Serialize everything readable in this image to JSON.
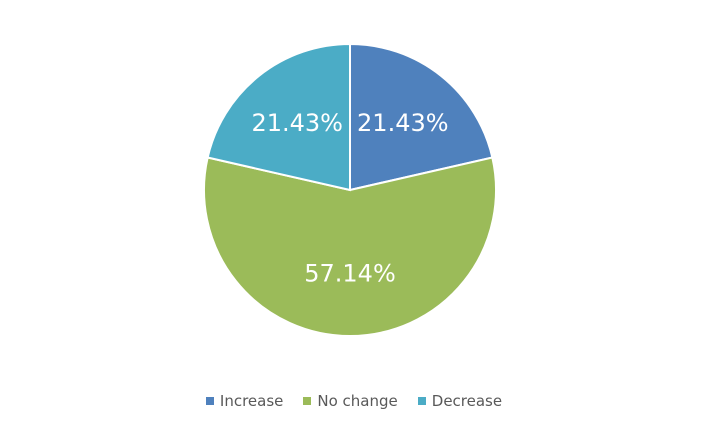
{
  "chart_data": {
    "type": "pie",
    "title": "",
    "categories": [
      "Increase",
      "No change",
      "Decrease"
    ],
    "values": [
      21.43,
      57.14,
      21.43
    ],
    "data_labels": [
      "21.43%",
      "57.14%",
      "21.43%"
    ],
    "colors": [
      "#4f81bd",
      "#9bbb59",
      "#4bacc6"
    ],
    "legend_position": "bottom",
    "start_angle": "top, clockwise"
  }
}
